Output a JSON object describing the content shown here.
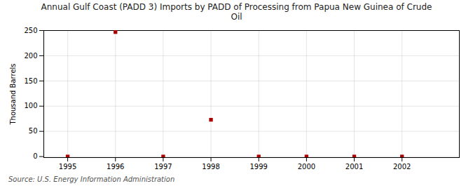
{
  "chart_data": {
    "type": "scatter",
    "title": "Annual Gulf Coast (PADD 3) Imports by PADD of Processing from Papua New Guinea of Crude\nOil",
    "ylabel": "Thousand Barrels",
    "caption": "Source: U.S. Energy Information Administration",
    "x": [
      1995,
      1996,
      1997,
      1998,
      1999,
      2000,
      2001,
      2002
    ],
    "values": [
      0,
      247,
      0,
      73,
      0,
      0,
      0,
      0
    ],
    "color": "#aa0000",
    "marker": "square",
    "xlim": [
      1994.5,
      2003.2
    ],
    "ylim": [
      -2,
      250
    ],
    "xticks": [
      1995,
      1996,
      1997,
      1998,
      1999,
      2000,
      2001,
      2002
    ],
    "yticks": [
      0,
      50,
      100,
      150,
      200,
      250
    ],
    "grid": true
  }
}
